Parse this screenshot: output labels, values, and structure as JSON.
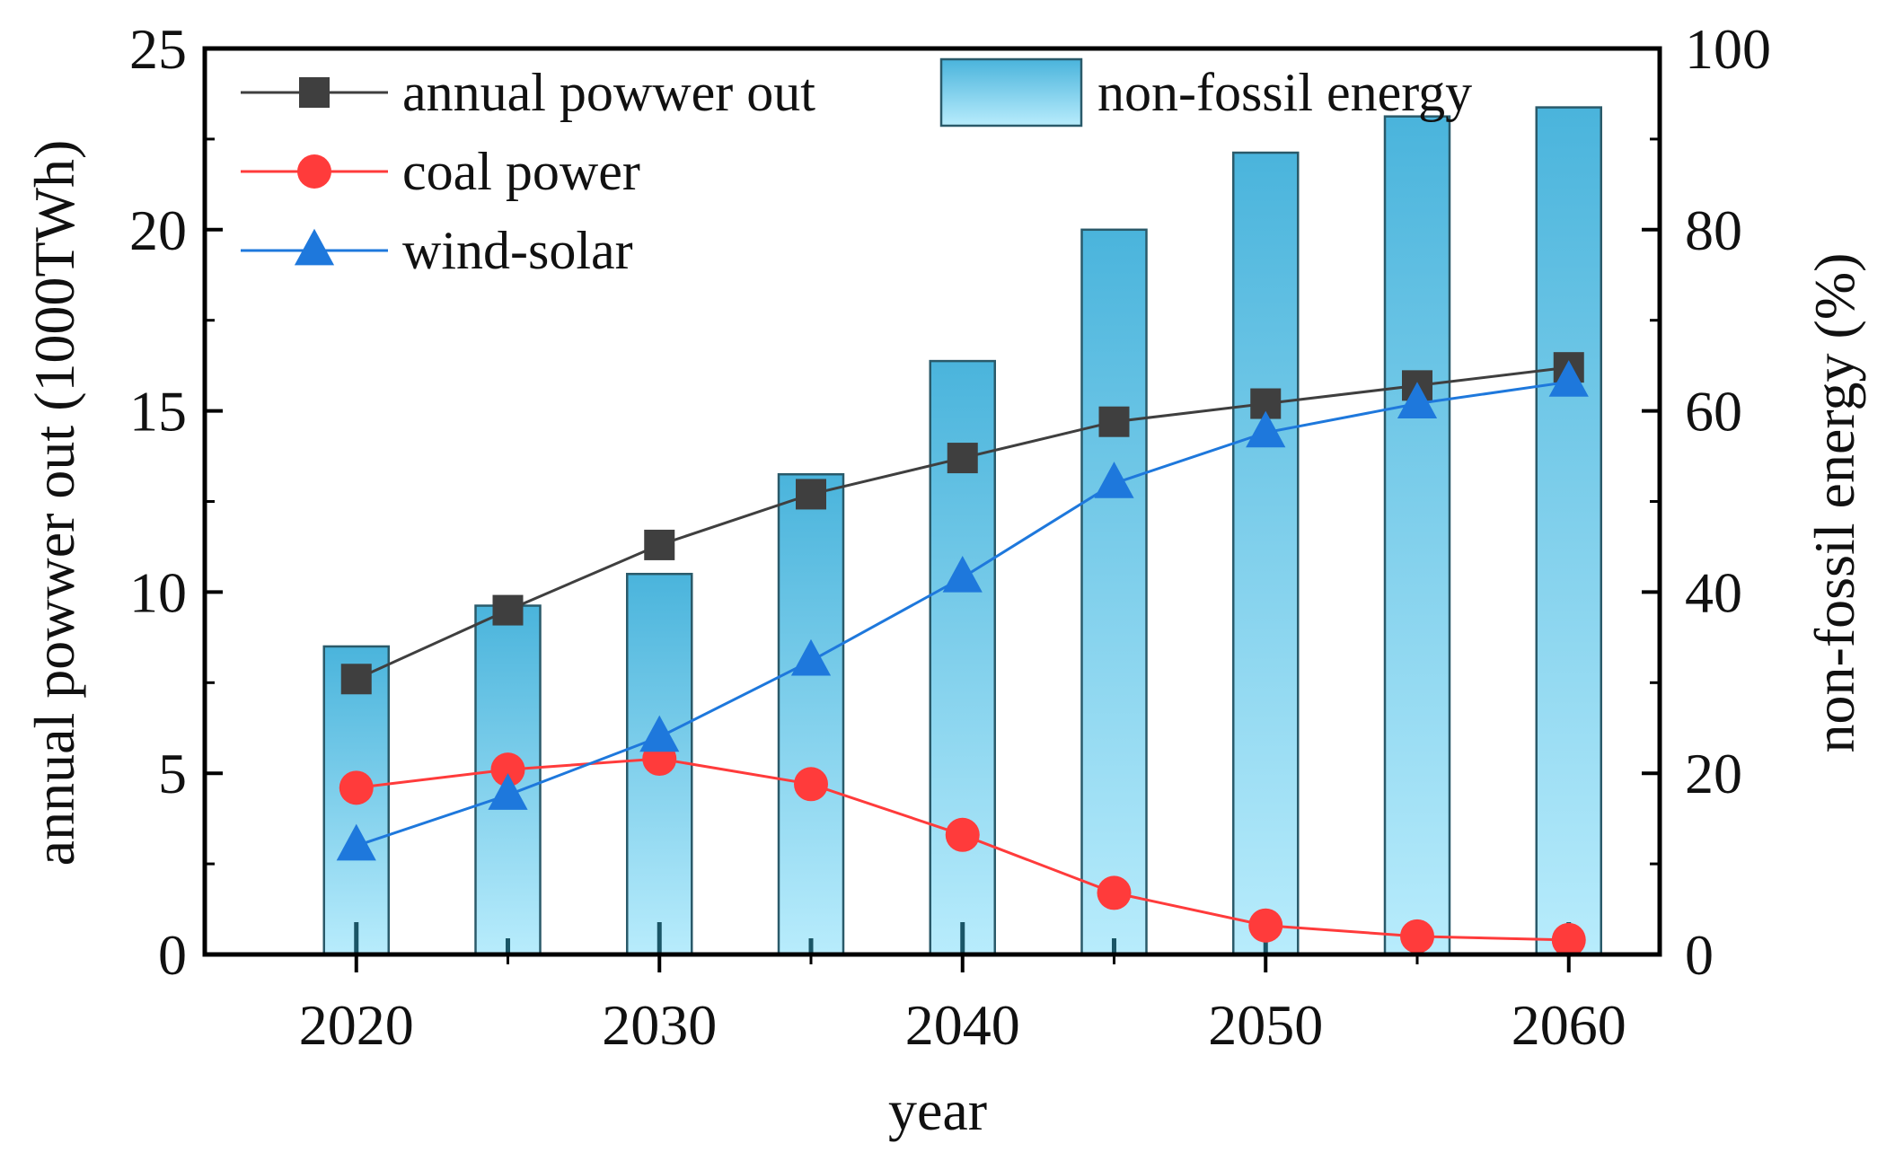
{
  "chart_data": {
    "type": "bar+line",
    "title": "",
    "xlabel": "year",
    "ylabel_left": "annual powwer out (1000TWh)",
    "ylabel_right": "non-fossil energy (%)",
    "x": [
      2020,
      2025,
      2030,
      2035,
      2040,
      2045,
      2050,
      2055,
      2060
    ],
    "x_ticks": [
      "2020",
      "2030",
      "2040",
      "2050",
      "2060"
    ],
    "xlim": [
      2015,
      2063
    ],
    "ylim_left": [
      0,
      25
    ],
    "ylim_right": [
      0,
      100
    ],
    "left_ticks": [
      "0",
      "5",
      "10",
      "15",
      "20",
      "25"
    ],
    "right_ticks": [
      "0",
      "20",
      "40",
      "60",
      "80",
      "100"
    ],
    "bars": {
      "name": "non-fossil energy",
      "axis": "right",
      "values": [
        34,
        38.5,
        42,
        53,
        65.5,
        80,
        88.5,
        92.5,
        93.5
      ],
      "color_top": "#4ab4dc",
      "color_bottom": "#b8ecfc",
      "edge_color": "#2a5a6a"
    },
    "series": [
      {
        "name": "annual powwer out",
        "axis": "left",
        "marker": "square",
        "color": "#3f3f3f",
        "values": [
          7.6,
          9.5,
          11.3,
          12.7,
          13.7,
          14.7,
          15.2,
          15.7,
          16.2
        ]
      },
      {
        "name": "coal power",
        "axis": "left",
        "marker": "circle",
        "color": "#ff3b3b",
        "values": [
          4.6,
          5.1,
          5.4,
          4.7,
          3.3,
          1.7,
          0.8,
          0.5,
          0.4
        ]
      },
      {
        "name": "wind-solar",
        "axis": "left",
        "marker": "triangle",
        "color": "#1e78dc",
        "values": [
          3.0,
          4.4,
          6.0,
          8.1,
          10.4,
          13.0,
          14.4,
          15.2,
          15.8
        ]
      }
    ],
    "legend": [
      {
        "label": "annual powwer out",
        "kind": "line",
        "marker": "square",
        "color": "#3f3f3f"
      },
      {
        "label": "coal power",
        "kind": "line",
        "marker": "circle",
        "color": "#ff3b3b"
      },
      {
        "label": "wind-solar",
        "kind": "line",
        "marker": "triangle",
        "color": "#1e78dc"
      },
      {
        "label": "non-fossil energy",
        "kind": "bar"
      }
    ],
    "legend_position": "top-left"
  }
}
